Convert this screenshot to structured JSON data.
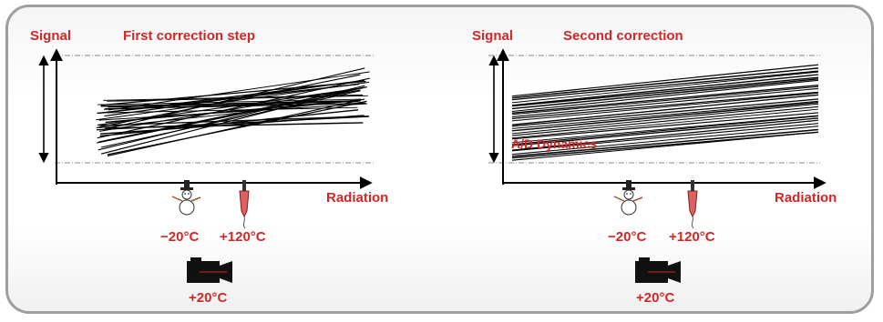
{
  "left_panel": {
    "axis_y_label": "Signal",
    "title": "First correction step",
    "axis_x_label": "Radiation",
    "cold_temp": "−20°C",
    "hot_temp": "+120°C"
  },
  "right_panel": {
    "axis_y_label": "Signal",
    "title": "Second correction",
    "axis_x_label": "Radiation",
    "cold_temp": "−20°C",
    "hot_temp": "+120°C",
    "dynamics_label": "A/D Dynamics"
  },
  "camera_temp_left": "+20°C",
  "camera_temp_right": "+20°C",
  "colors": {
    "accent_red": "#d42626",
    "frame_gray": "#9e9e9e",
    "line_black": "#000000"
  },
  "icons": {
    "cold": "snowman-icon",
    "hot": "thermometer-icon",
    "camera": "camera-icon"
  }
}
